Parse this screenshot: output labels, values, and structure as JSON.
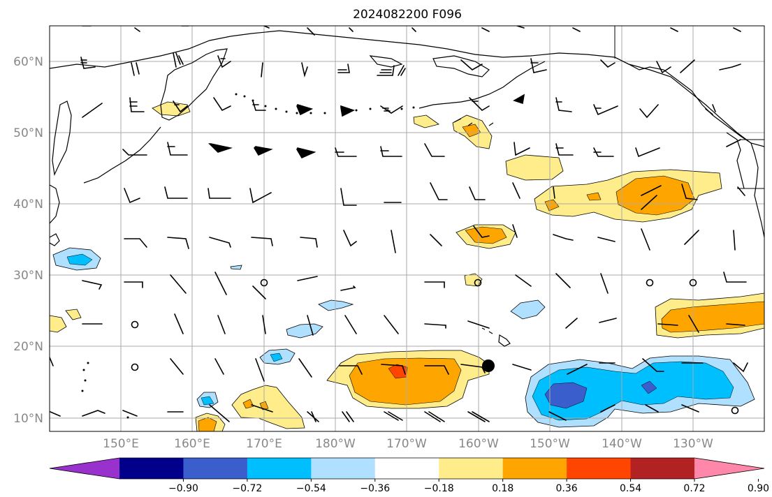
{
  "title": "2024082200 F096",
  "lat_labels": [
    "10°N",
    "20°N",
    "30°N",
    "40°N",
    "50°N",
    "60°N"
  ],
  "lon_labels": [
    "150°E",
    "160°E",
    "170°E",
    "180°W",
    "170°W",
    "160°W",
    "150°W",
    "140°W",
    "130°W"
  ],
  "colorbar": {
    "ticks": [
      "−0.90",
      "−0.72",
      "−0.54",
      "−0.36",
      "−0.18",
      "0.18",
      "0.36",
      "0.54",
      "0.72",
      "0.90"
    ],
    "colors": [
      "#9932cc",
      "#00008b",
      "#3a5fcd",
      "#00bfff",
      "#b0e0ff",
      "#ffffff",
      "#ffec8b",
      "#ffa500",
      "#ff4500",
      "#b22222",
      "#ff88aa"
    ]
  },
  "marker": {
    "symbol": "filled-circle",
    "color": "#000000"
  }
}
